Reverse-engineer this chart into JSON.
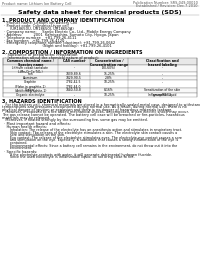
{
  "bg_color": "#ffffff",
  "header_left": "Product name: Lithium Ion Battery Cell",
  "header_right_line1": "Publication Number: SRS-049-00010",
  "header_right_line2": "Established / Revision: Dec.7.2010",
  "title": "Safety data sheet for chemical products (SDS)",
  "section1_title": "1. PRODUCT AND COMPANY IDENTIFICATION",
  "section1_lines": [
    "  · Product name: Lithium Ion Battery Cell",
    "  · Product code: Cylindrical-type cell",
    "       (UR18650U, UR18650J, UR18650A)",
    "  · Company name:     Sanyo Electric Co., Ltd., Mobile Energy Company",
    "  · Address:          2001  Kamiyashiro, Sumoto City, Hyogo, Japan",
    "  · Telephone number:   +81-799-26-4111",
    "  · Fax number:   +81-799-26-4120",
    "  · Emergency telephone number (daytime): +81-799-26-0662",
    "                                    (Night and holiday): +81-799-26-4101"
  ],
  "section2_title": "2. COMPOSITION / INFORMATION ON INGREDIENTS",
  "section2_subtitle": "  · Substance or preparation: Preparation",
  "section2_sub2": "  · Information about the chemical nature of product:",
  "table_col_headers": [
    "Common chemical name /\nSpecies name",
    "CAS number",
    "Concentration /\nConcentration range",
    "Classification and\nhazard labeling"
  ],
  "table_rows": [
    [
      "Lithium cobalt tantalate\n(LiMn₂O⁴·Co·TiO₂)",
      "-",
      "(30-60%)",
      "-"
    ],
    [
      "Iron",
      "7439-89-6",
      "15-25%",
      "-"
    ],
    [
      "Aluminum",
      "7429-90-5",
      "2-8%",
      "-"
    ],
    [
      "Graphite\n(Flake in graphite-1)\n(Artificial graphite-1)",
      "7782-42-5\n7782-44-0",
      "10-25%",
      "-"
    ],
    [
      "Copper",
      "7440-50-8",
      "8-16%",
      "Sensitization of the skin\ngroup R43.2"
    ],
    [
      "Organic electrolyte",
      "-",
      "10-25%",
      "Inflammable liquid"
    ]
  ],
  "section3_title": "3. HAZARDS IDENTIFICATION",
  "section3_para": [
    "   For the battery cell, chemical materials are stored in a hermetically-sealed metal case, designed to withstand",
    "temperatures and pressures encountered during normal use. As a result, during normal use, there is no",
    "physical danger of ignition or explosion and there is no danger of hazardous materials leakage.",
    "   However, if exposed to a fire added mechanical shocks, decomposed, arisen electric shock may occur.",
    "The gas release cannot be operated. The battery cell case will be breached or fire-particles, hazardous",
    "materials may be released.",
    "   Moreover, if heated strongly by the surrounding fire, some gas may be emitted."
  ],
  "section3_bullet1": "  · Most important hazard and effects:",
  "section3_human": "    Human health effects:",
  "section3_human_lines": [
    "       Inhalation: The release of the electrolyte has an anesthesia action and stimulates in respiratory tract.",
    "       Skin contact: The release of the electrolyte stimulates a skin. The electrolyte skin contact causes a",
    "       sore and stimulation on the skin.",
    "       Eye contact: The release of the electrolyte stimulates eyes. The electrolyte eye contact causes a sore",
    "       and stimulation on the eye. Especially, a substance that causes a strong inflammation of the eye is",
    "       contained.",
    "       Environmental effects: Since a battery cell remains in the environment, do not throw out it into the",
    "       environment."
  ],
  "section3_specific": "  · Specific hazards:",
  "section3_specific_lines": [
    "       If the electrolyte contacts with water, it will generate detrimental hydrogen fluoride.",
    "       Since the used electrolyte is inflammable liquid, do not bring close to fire."
  ]
}
